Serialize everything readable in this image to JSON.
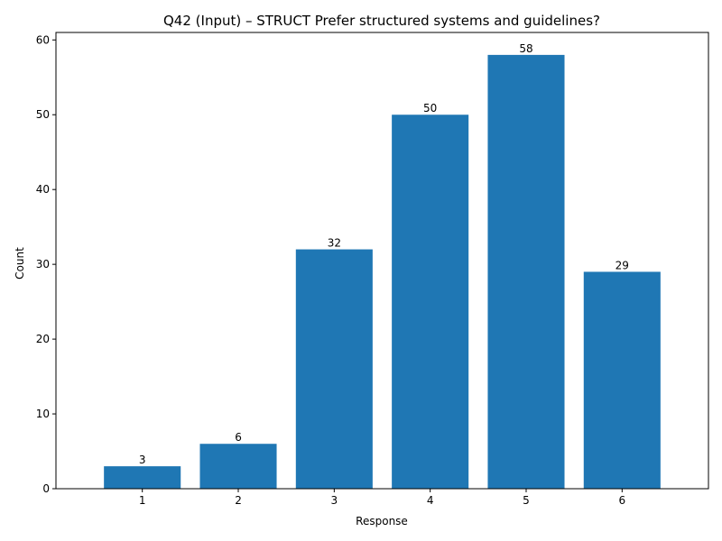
{
  "chart_data": {
    "type": "bar",
    "title": "Q42 (Input) – STRUCT Prefer structured systems and guidelines?",
    "xlabel": "Response",
    "ylabel": "Count",
    "categories": [
      "1",
      "2",
      "3",
      "4",
      "5",
      "6"
    ],
    "values": [
      3,
      6,
      32,
      50,
      58,
      29
    ],
    "data_labels": [
      "3",
      "6",
      "32",
      "50",
      "58",
      "29"
    ],
    "ylim": [
      0,
      61
    ],
    "yticks": [
      0,
      10,
      20,
      30,
      40,
      50,
      60
    ],
    "grid": false,
    "legend": "none",
    "bar_color": "#1f77b4"
  }
}
